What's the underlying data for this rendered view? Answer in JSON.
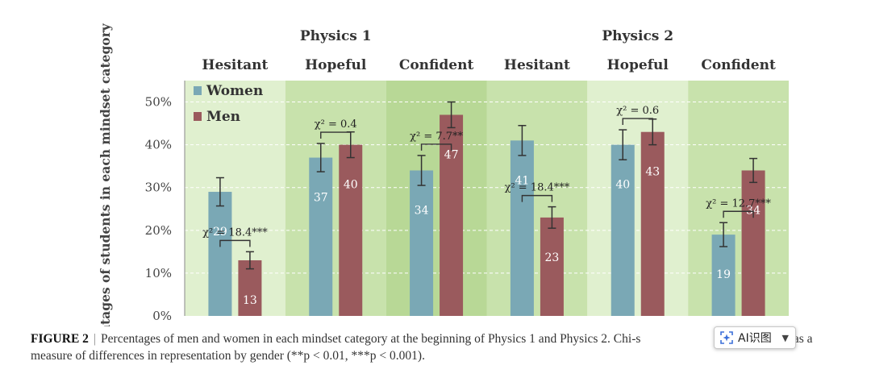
{
  "chart_data": {
    "type": "bar",
    "group_labels": [
      "Physics 1",
      "Physics 2"
    ],
    "categories": [
      "Hesitant",
      "Hopeful",
      "Confident",
      "Hesitant",
      "Hopeful",
      "Confident"
    ],
    "series": [
      {
        "name": "Women",
        "color": "#7aa8b5",
        "values": [
          29,
          37,
          34,
          41,
          40,
          19
        ],
        "error": [
          3.3,
          3.3,
          3.5,
          3.5,
          3.5,
          2.8
        ]
      },
      {
        "name": "Men",
        "color": "#9a5a5d",
        "values": [
          13,
          40,
          47,
          23,
          43,
          34
        ],
        "error": [
          2.0,
          3.0,
          3.0,
          2.5,
          3.0,
          2.8
        ]
      }
    ],
    "stats": [
      "χ² = 18.4***",
      "χ² = 0.4",
      "χ² = 7.7**",
      "χ² = 18.4***",
      "χ² = 0.6",
      "χ² = 12.7***"
    ],
    "ylabel": "Percentages of students in each mindset category",
    "ylim": [
      0,
      55
    ],
    "yticks": [
      0,
      10,
      20,
      30,
      40,
      50
    ],
    "ytick_labels": [
      "0%",
      "10%",
      "20%",
      "30%",
      "40%",
      "50%"
    ],
    "legend_position": "top-left",
    "background_colors": [
      "#e0f0cf",
      "#c8e2ac",
      "#b8d896"
    ]
  },
  "caption": {
    "figure_label": "FIGURE 2",
    "separator": "|",
    "text": "Percentages of men and women in each mindset category at the beginning of Physics 1 and Physics 2. Chi-s",
    "text_after": "are report-ed as a measure of differences in representation by gender (**p < 0.01, ***p < 0.001)."
  },
  "overlay": {
    "ai_button_label": "AI识图",
    "icon": "sparkle-scan-icon",
    "chevron": "chevron-down-icon"
  }
}
